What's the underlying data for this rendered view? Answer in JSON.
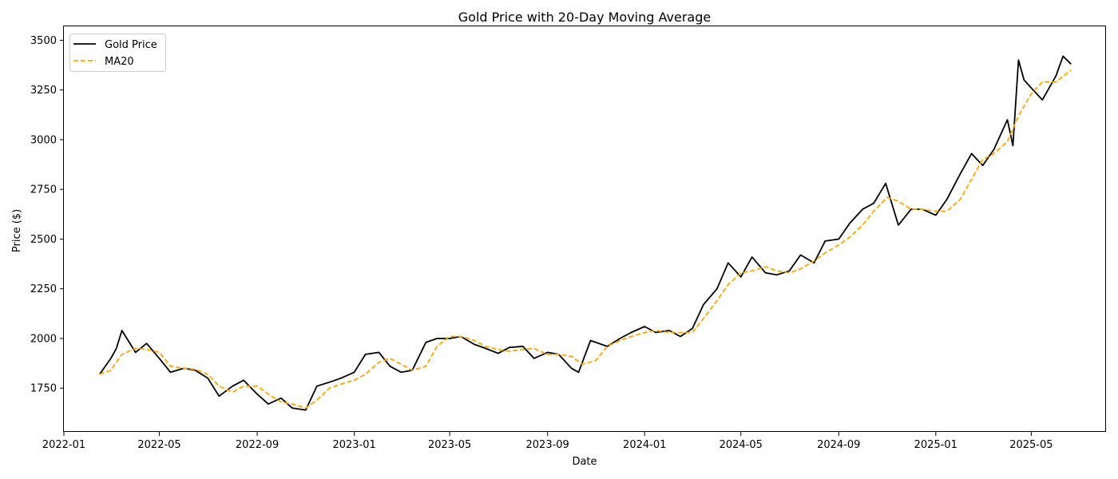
{
  "chart_data": {
    "type": "line",
    "title": "Gold Price with 20-Day Moving Average",
    "xlabel": "Date",
    "ylabel": "Price ($)",
    "xlim": [
      "2022-01-01",
      "2025-08-03"
    ],
    "ylim": [
      1530,
      3570
    ],
    "x_ticks": [
      "2022-01",
      "2022-05",
      "2022-09",
      "2023-01",
      "2023-05",
      "2023-09",
      "2024-01",
      "2024-05",
      "2024-09",
      "2025-01",
      "2025-05"
    ],
    "x_tick_dates": [
      "2022-01-01",
      "2022-05-01",
      "2022-09-01",
      "2023-01-01",
      "2023-05-01",
      "2023-09-01",
      "2024-01-01",
      "2024-05-01",
      "2024-09-01",
      "2025-01-01",
      "2025-05-01"
    ],
    "y_ticks": [
      1750,
      2000,
      2250,
      2500,
      2750,
      3000,
      3250,
      3500
    ],
    "grid": false,
    "legend_position": "top-left",
    "series": [
      {
        "name": "Gold Price",
        "color": "#000000",
        "style": "solid",
        "x": [
          "2022-02-15",
          "2022-03-01",
          "2022-03-08",
          "2022-03-15",
          "2022-04-01",
          "2022-04-15",
          "2022-05-01",
          "2022-05-15",
          "2022-06-01",
          "2022-06-15",
          "2022-07-01",
          "2022-07-15",
          "2022-08-01",
          "2022-08-15",
          "2022-09-01",
          "2022-09-15",
          "2022-10-01",
          "2022-10-15",
          "2022-11-01",
          "2022-11-15",
          "2022-12-01",
          "2022-12-15",
          "2023-01-01",
          "2023-01-15",
          "2023-02-01",
          "2023-02-15",
          "2023-03-01",
          "2023-03-15",
          "2023-04-01",
          "2023-04-15",
          "2023-05-01",
          "2023-05-15",
          "2023-06-01",
          "2023-06-15",
          "2023-07-01",
          "2023-07-15",
          "2023-08-01",
          "2023-08-15",
          "2023-09-01",
          "2023-09-15",
          "2023-10-01",
          "2023-10-10",
          "2023-10-25",
          "2023-11-15",
          "2023-12-01",
          "2023-12-15",
          "2024-01-01",
          "2024-01-15",
          "2024-02-01",
          "2024-02-15",
          "2024-03-01",
          "2024-03-15",
          "2024-04-01",
          "2024-04-15",
          "2024-05-01",
          "2024-05-15",
          "2024-06-01",
          "2024-06-15",
          "2024-07-01",
          "2024-07-15",
          "2024-08-01",
          "2024-08-15",
          "2024-09-01",
          "2024-09-15",
          "2024-10-01",
          "2024-10-15",
          "2024-10-30",
          "2024-11-15",
          "2024-12-01",
          "2024-12-15",
          "2025-01-01",
          "2025-01-15",
          "2025-02-01",
          "2025-02-15",
          "2025-03-01",
          "2025-03-15",
          "2025-04-01",
          "2025-04-08",
          "2025-04-15",
          "2025-04-22",
          "2025-05-01",
          "2025-05-15",
          "2025-06-01",
          "2025-06-10",
          "2025-06-20"
        ],
        "y": [
          1820,
          1900,
          1950,
          2040,
          1930,
          1975,
          1900,
          1830,
          1850,
          1840,
          1800,
          1710,
          1760,
          1790,
          1720,
          1670,
          1700,
          1650,
          1640,
          1760,
          1780,
          1800,
          1830,
          1920,
          1930,
          1860,
          1830,
          1840,
          1980,
          2000,
          2000,
          2010,
          1970,
          1950,
          1925,
          1955,
          1960,
          1900,
          1930,
          1920,
          1850,
          1830,
          1990,
          1960,
          2000,
          2030,
          2060,
          2030,
          2040,
          2010,
          2050,
          2170,
          2250,
          2380,
          2310,
          2410,
          2330,
          2320,
          2340,
          2420,
          2380,
          2490,
          2500,
          2580,
          2650,
          2680,
          2780,
          2570,
          2650,
          2650,
          2620,
          2700,
          2830,
          2930,
          2870,
          2950,
          3100,
          2970,
          3400,
          3300,
          3260,
          3200,
          3320,
          3420,
          3380
        ]
      },
      {
        "name": "MA20",
        "color": "#FFA500",
        "style": "dashed",
        "x": [
          "2022-02-15",
          "2022-03-01",
          "2022-03-15",
          "2022-04-01",
          "2022-04-15",
          "2022-05-01",
          "2022-05-15",
          "2022-06-01",
          "2022-06-15",
          "2022-07-01",
          "2022-07-15",
          "2022-08-01",
          "2022-08-15",
          "2022-09-01",
          "2022-09-15",
          "2022-10-01",
          "2022-10-15",
          "2022-11-01",
          "2022-11-15",
          "2022-12-01",
          "2022-12-15",
          "2023-01-01",
          "2023-01-15",
          "2023-02-01",
          "2023-02-15",
          "2023-03-01",
          "2023-03-15",
          "2023-04-01",
          "2023-04-15",
          "2023-05-01",
          "2023-05-15",
          "2023-06-01",
          "2023-06-15",
          "2023-07-01",
          "2023-07-15",
          "2023-08-01",
          "2023-08-15",
          "2023-09-01",
          "2023-09-15",
          "2023-10-01",
          "2023-10-15",
          "2023-11-01",
          "2023-11-15",
          "2023-12-01",
          "2023-12-15",
          "2024-01-01",
          "2024-01-15",
          "2024-02-01",
          "2024-02-15",
          "2024-03-01",
          "2024-03-15",
          "2024-04-01",
          "2024-04-15",
          "2024-05-01",
          "2024-05-15",
          "2024-06-01",
          "2024-06-15",
          "2024-07-01",
          "2024-07-15",
          "2024-08-01",
          "2024-08-15",
          "2024-09-01",
          "2024-09-15",
          "2024-10-01",
          "2024-10-15",
          "2024-11-01",
          "2024-11-15",
          "2024-12-01",
          "2024-12-15",
          "2025-01-01",
          "2025-01-15",
          "2025-02-01",
          "2025-02-15",
          "2025-03-01",
          "2025-03-15",
          "2025-04-01",
          "2025-04-15",
          "2025-05-01",
          "2025-05-15",
          "2025-06-01",
          "2025-06-20"
        ],
        "y": [
          1820,
          1840,
          1920,
          1950,
          1945,
          1930,
          1860,
          1850,
          1845,
          1820,
          1760,
          1730,
          1760,
          1760,
          1720,
          1680,
          1670,
          1650,
          1690,
          1750,
          1770,
          1790,
          1820,
          1880,
          1900,
          1870,
          1840,
          1860,
          1960,
          2010,
          2010,
          1990,
          1960,
          1945,
          1935,
          1945,
          1950,
          1920,
          1920,
          1910,
          1870,
          1890,
          1960,
          1990,
          2010,
          2030,
          2040,
          2030,
          2030,
          2030,
          2100,
          2190,
          2270,
          2330,
          2340,
          2360,
          2340,
          2330,
          2350,
          2390,
          2430,
          2470,
          2510,
          2570,
          2640,
          2710,
          2690,
          2650,
          2650,
          2640,
          2640,
          2700,
          2800,
          2900,
          2930,
          2990,
          3120,
          3230,
          3290,
          3290,
          3350
        ]
      }
    ]
  }
}
